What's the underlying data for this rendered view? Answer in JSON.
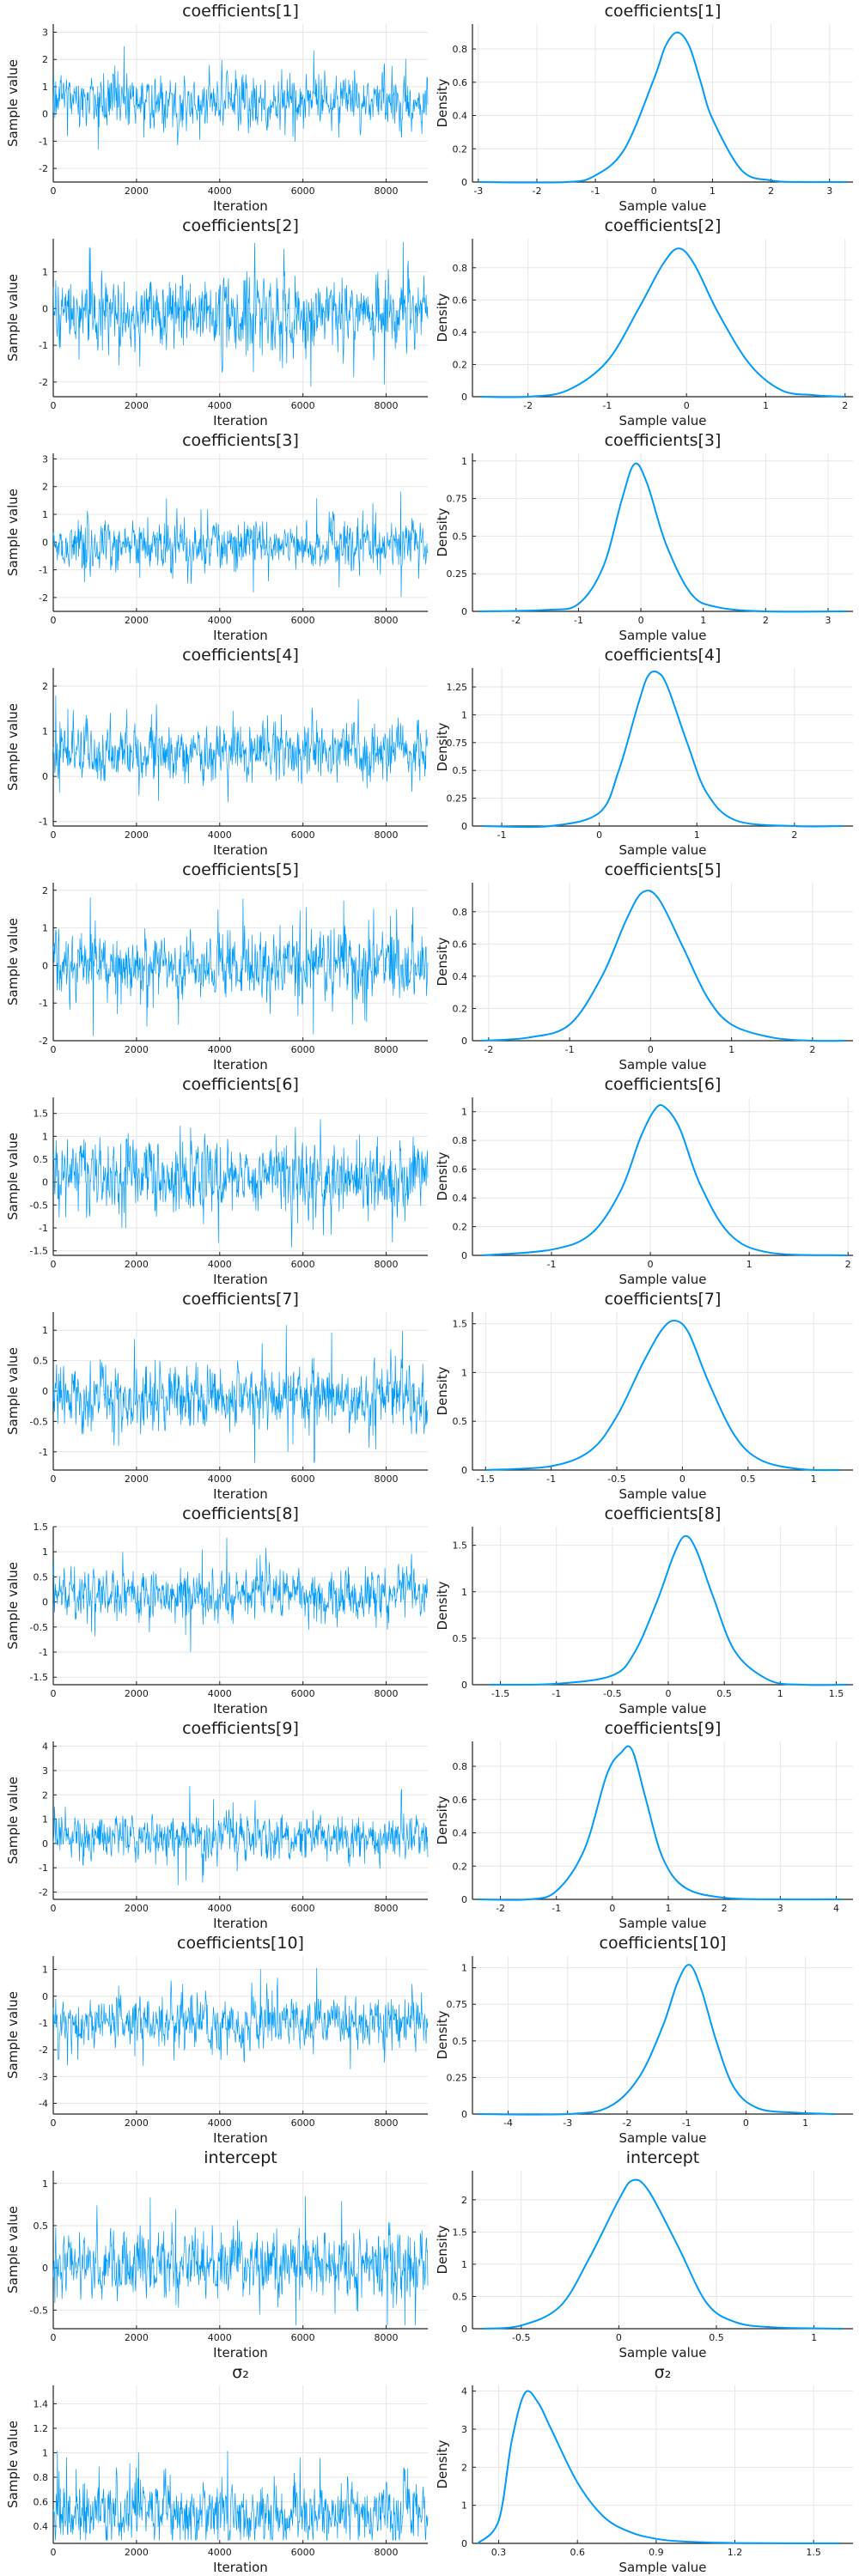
{
  "figure": {
    "series_color": "#009af9",
    "trace_xlabel": "Iteration",
    "trace_ylabel": "Sample value",
    "density_xlabel": "Sample value",
    "density_ylabel": "Density"
  },
  "chart_data": [
    {
      "title": "coefficients[1]",
      "trace": {
        "type": "line",
        "xlabel": "Iteration",
        "ylabel": "Sample value",
        "xlim": [
          0,
          9000
        ],
        "ylim": [
          -2.5,
          3.3
        ],
        "xticks": [
          0,
          2000,
          4000,
          6000,
          8000
        ],
        "yticks": [
          -2,
          -1,
          0,
          1,
          2,
          3
        ],
        "mean": 0.45,
        "sd": 0.45
      },
      "density": {
        "type": "line",
        "xlabel": "Sample value",
        "ylabel": "Density",
        "xlim": [
          -3.1,
          3.4
        ],
        "ylim": [
          0,
          0.95
        ],
        "xticks": [
          -3,
          -2,
          -1,
          0,
          1,
          2,
          3
        ],
        "yticks": [
          0,
          0.2,
          0.4,
          0.6,
          0.8
        ],
        "x": [
          -3.0,
          -1.5,
          -1.0,
          -0.5,
          0.0,
          0.2,
          0.4,
          0.6,
          0.8,
          1.0,
          1.5,
          2.0,
          2.5,
          3.3
        ],
        "y": [
          0.0,
          0.0,
          0.04,
          0.2,
          0.62,
          0.82,
          0.9,
          0.82,
          0.6,
          0.38,
          0.07,
          0.01,
          0.0,
          0.0
        ]
      }
    },
    {
      "title": "coefficients[2]",
      "trace": {
        "type": "line",
        "xlabel": "Iteration",
        "ylabel": "Sample value",
        "xlim": [
          0,
          9000
        ],
        "ylim": [
          -2.4,
          1.9
        ],
        "xticks": [
          0,
          2000,
          4000,
          6000,
          8000
        ],
        "yticks": [
          -2,
          -1,
          0,
          1
        ],
        "mean": -0.1,
        "sd": 0.45
      },
      "density": {
        "type": "line",
        "xlabel": "Sample value",
        "ylabel": "Density",
        "xlim": [
          -2.7,
          2.1
        ],
        "ylim": [
          0,
          0.98
        ],
        "xticks": [
          -2,
          -1,
          0,
          1,
          2
        ],
        "yticks": [
          0,
          0.2,
          0.4,
          0.6,
          0.8
        ],
        "x": [
          -2.6,
          -2.0,
          -1.5,
          -1.0,
          -0.6,
          -0.3,
          -0.1,
          0.1,
          0.4,
          0.8,
          1.2,
          1.6,
          2.0
        ],
        "y": [
          0.0,
          0.0,
          0.04,
          0.22,
          0.55,
          0.82,
          0.92,
          0.82,
          0.52,
          0.2,
          0.04,
          0.01,
          0.0
        ]
      }
    },
    {
      "title": "coefficients[3]",
      "trace": {
        "type": "line",
        "xlabel": "Iteration",
        "ylabel": "Sample value",
        "xlim": [
          0,
          9000
        ],
        "ylim": [
          -2.5,
          3.2
        ],
        "xticks": [
          0,
          2000,
          4000,
          6000,
          8000
        ],
        "yticks": [
          -2,
          -1,
          0,
          1,
          2,
          3
        ],
        "mean": -0.1,
        "sd": 0.42
      },
      "density": {
        "type": "line",
        "xlabel": "Sample value",
        "ylabel": "Density",
        "xlim": [
          -2.7,
          3.4
        ],
        "ylim": [
          0,
          1.05
        ],
        "xticks": [
          -2,
          -1,
          0,
          1,
          2,
          3
        ],
        "yticks": [
          0,
          0.25,
          0.5,
          0.75,
          1.0
        ],
        "x": [
          -2.6,
          -1.5,
          -1.0,
          -0.6,
          -0.3,
          -0.1,
          0.1,
          0.4,
          0.8,
          1.2,
          2.0,
          3.3
        ],
        "y": [
          0.0,
          0.01,
          0.05,
          0.3,
          0.75,
          0.98,
          0.85,
          0.45,
          0.12,
          0.03,
          0.0,
          0.0
        ]
      }
    },
    {
      "title": "coefficients[4]",
      "trace": {
        "type": "line",
        "xlabel": "Iteration",
        "ylabel": "Sample value",
        "xlim": [
          0,
          9000
        ],
        "ylim": [
          -1.1,
          2.4
        ],
        "xticks": [
          0,
          2000,
          4000,
          6000,
          8000
        ],
        "yticks": [
          -1,
          0,
          1,
          2
        ],
        "mean": 0.55,
        "sd": 0.3
      },
      "density": {
        "type": "line",
        "xlabel": "Sample value",
        "ylabel": "Density",
        "xlim": [
          -1.3,
          2.6
        ],
        "ylim": [
          0,
          1.42
        ],
        "xticks": [
          -1,
          0,
          1,
          2
        ],
        "yticks": [
          0,
          0.25,
          0.5,
          0.75,
          1.0,
          1.25
        ],
        "x": [
          -1.2,
          -0.5,
          0.0,
          0.2,
          0.4,
          0.5,
          0.6,
          0.7,
          0.9,
          1.1,
          1.4,
          2.0,
          2.5
        ],
        "y": [
          0.0,
          0.0,
          0.12,
          0.5,
          1.1,
          1.35,
          1.38,
          1.25,
          0.75,
          0.3,
          0.05,
          0.0,
          0.0
        ]
      }
    },
    {
      "title": "coefficients[5]",
      "trace": {
        "type": "line",
        "xlabel": "Iteration",
        "ylabel": "Sample value",
        "xlim": [
          0,
          9000
        ],
        "ylim": [
          -2.0,
          2.2
        ],
        "xticks": [
          0,
          2000,
          4000,
          6000,
          8000
        ],
        "yticks": [
          -2,
          -1,
          0,
          1,
          2
        ],
        "mean": 0.0,
        "sd": 0.45
      },
      "density": {
        "type": "line",
        "xlabel": "Sample value",
        "ylabel": "Density",
        "xlim": [
          -2.2,
          2.5
        ],
        "ylim": [
          0,
          0.98
        ],
        "xticks": [
          -2,
          -1,
          0,
          1,
          2
        ],
        "yticks": [
          0,
          0.2,
          0.4,
          0.6,
          0.8
        ],
        "x": [
          -2.1,
          -1.5,
          -1.0,
          -0.6,
          -0.3,
          -0.1,
          0.1,
          0.4,
          0.7,
          1.0,
          1.5,
          2.0,
          2.4
        ],
        "y": [
          0.0,
          0.02,
          0.1,
          0.4,
          0.75,
          0.92,
          0.88,
          0.58,
          0.27,
          0.1,
          0.02,
          0.0,
          0.0
        ]
      }
    },
    {
      "title": "coefficients[6]",
      "trace": {
        "type": "line",
        "xlabel": "Iteration",
        "ylabel": "Sample value",
        "xlim": [
          0,
          9000
        ],
        "ylim": [
          -1.6,
          1.85
        ],
        "xticks": [
          0,
          2000,
          4000,
          6000,
          8000
        ],
        "yticks": [
          -1.5,
          -1.0,
          -0.5,
          0.0,
          0.5,
          1.0,
          1.5
        ],
        "mean": 0.1,
        "sd": 0.38
      },
      "density": {
        "type": "line",
        "xlabel": "Sample value",
        "ylabel": "Density",
        "xlim": [
          -1.8,
          2.05
        ],
        "ylim": [
          0,
          1.1
        ],
        "xticks": [
          -1,
          0,
          1,
          2
        ],
        "yticks": [
          0,
          0.2,
          0.4,
          0.6,
          0.8,
          1.0
        ],
        "x": [
          -1.7,
          -1.0,
          -0.6,
          -0.3,
          -0.1,
          0.05,
          0.15,
          0.3,
          0.5,
          0.8,
          1.2,
          2.0
        ],
        "y": [
          0.0,
          0.04,
          0.15,
          0.45,
          0.82,
          1.02,
          1.03,
          0.88,
          0.5,
          0.15,
          0.02,
          0.0
        ]
      }
    },
    {
      "title": "coefficients[7]",
      "trace": {
        "type": "line",
        "xlabel": "Iteration",
        "ylabel": "Sample value",
        "xlim": [
          0,
          9000
        ],
        "ylim": [
          -1.3,
          1.3
        ],
        "xticks": [
          0,
          2000,
          4000,
          6000,
          8000
        ],
        "yticks": [
          -1.0,
          -0.5,
          0.0,
          0.5,
          1.0
        ],
        "mean": -0.08,
        "sd": 0.26
      },
      "density": {
        "type": "line",
        "xlabel": "Sample value",
        "ylabel": "Density",
        "xlim": [
          -1.6,
          1.3
        ],
        "ylim": [
          0,
          1.62
        ],
        "xticks": [
          -1.5,
          -1.0,
          -0.5,
          0.0,
          0.5,
          1.0
        ],
        "yticks": [
          0,
          0.5,
          1.0,
          1.5
        ],
        "x": [
          -1.5,
          -1.0,
          -0.7,
          -0.5,
          -0.3,
          -0.15,
          -0.05,
          0.05,
          0.2,
          0.4,
          0.6,
          0.9,
          1.2
        ],
        "y": [
          0.0,
          0.04,
          0.2,
          0.55,
          1.1,
          1.45,
          1.53,
          1.4,
          0.9,
          0.35,
          0.1,
          0.01,
          0.0
        ]
      }
    },
    {
      "title": "coefficients[8]",
      "trace": {
        "type": "line",
        "xlabel": "Iteration",
        "ylabel": "Sample value",
        "xlim": [
          0,
          9000
        ],
        "ylim": [
          -1.65,
          1.5
        ],
        "xticks": [
          0,
          2000,
          4000,
          6000,
          8000
        ],
        "yticks": [
          -1.5,
          -1.0,
          -0.5,
          0.0,
          0.5,
          1.0,
          1.5
        ],
        "mean": 0.15,
        "sd": 0.25
      },
      "density": {
        "type": "line",
        "xlabel": "Sample value",
        "ylabel": "Density",
        "xlim": [
          -1.75,
          1.65
        ],
        "ylim": [
          0,
          1.7
        ],
        "xticks": [
          -1.5,
          -1.0,
          -0.5,
          0.0,
          0.5,
          1.0,
          1.5
        ],
        "yticks": [
          0,
          0.5,
          1.0,
          1.5
        ],
        "x": [
          -1.6,
          -1.0,
          -0.5,
          -0.3,
          -0.1,
          0.05,
          0.15,
          0.25,
          0.4,
          0.6,
          0.9,
          1.2,
          1.6
        ],
        "y": [
          0.0,
          0.01,
          0.1,
          0.35,
          0.9,
          1.4,
          1.6,
          1.45,
          0.95,
          0.35,
          0.05,
          0.0,
          0.0
        ]
      }
    },
    {
      "title": "coefficients[9]",
      "trace": {
        "type": "line",
        "xlabel": "Iteration",
        "ylabel": "Sample value",
        "xlim": [
          0,
          9000
        ],
        "ylim": [
          -2.3,
          4.2
        ],
        "xticks": [
          0,
          2000,
          4000,
          6000,
          8000
        ],
        "yticks": [
          -2,
          -1,
          0,
          1,
          2,
          3,
          4
        ],
        "mean": 0.3,
        "sd": 0.45
      },
      "density": {
        "type": "line",
        "xlabel": "Sample value",
        "ylabel": "Density",
        "xlim": [
          -2.5,
          4.3
        ],
        "ylim": [
          0,
          0.95
        ],
        "xticks": [
          -2,
          -1,
          0,
          1,
          2,
          3,
          4
        ],
        "yticks": [
          0,
          0.2,
          0.4,
          0.6,
          0.8
        ],
        "x": [
          -2.4,
          -1.5,
          -1.0,
          -0.5,
          -0.1,
          0.15,
          0.35,
          0.6,
          0.9,
          1.3,
          2.0,
          3.0,
          4.1
        ],
        "y": [
          0.0,
          0.0,
          0.05,
          0.3,
          0.75,
          0.88,
          0.9,
          0.6,
          0.25,
          0.07,
          0.01,
          0.0,
          0.0
        ]
      }
    },
    {
      "title": "coefficients[10]",
      "trace": {
        "type": "line",
        "xlabel": "Iteration",
        "ylabel": "Sample value",
        "xlim": [
          0,
          9000
        ],
        "ylim": [
          -4.4,
          1.5
        ],
        "xticks": [
          0,
          2000,
          4000,
          6000,
          8000
        ],
        "yticks": [
          -4,
          -3,
          -2,
          -1,
          0,
          1
        ],
        "mean": -0.95,
        "sd": 0.45
      },
      "density": {
        "type": "line",
        "xlabel": "Sample value",
        "ylabel": "Density",
        "xlim": [
          -4.6,
          1.8
        ],
        "ylim": [
          0,
          1.08
        ],
        "xticks": [
          -4,
          -3,
          -2,
          -1,
          0,
          1
        ],
        "yticks": [
          0,
          0.25,
          0.5,
          0.75,
          1.0
        ],
        "x": [
          -4.5,
          -3.0,
          -2.3,
          -1.8,
          -1.4,
          -1.15,
          -0.95,
          -0.75,
          -0.5,
          -0.2,
          0.2,
          0.8,
          1.5
        ],
        "y": [
          0.0,
          0.0,
          0.05,
          0.25,
          0.6,
          0.9,
          1.02,
          0.85,
          0.5,
          0.18,
          0.04,
          0.01,
          0.0
        ]
      }
    },
    {
      "title": "intercept",
      "trace": {
        "type": "line",
        "xlabel": "Iteration",
        "ylabel": "Sample value",
        "xlim": [
          0,
          9000
        ],
        "ylim": [
          -0.72,
          1.15
        ],
        "xticks": [
          0,
          2000,
          4000,
          6000,
          8000
        ],
        "yticks": [
          -0.5,
          0.0,
          0.5,
          1.0
        ],
        "mean": 0.05,
        "sd": 0.18
      },
      "density": {
        "type": "line",
        "xlabel": "Sample value",
        "ylabel": "Density",
        "xlim": [
          -0.75,
          1.2
        ],
        "ylim": [
          0,
          2.45
        ],
        "xticks": [
          -0.5,
          0.0,
          0.5,
          1.0
        ],
        "yticks": [
          0,
          0.5,
          1.0,
          1.5,
          2.0
        ],
        "x": [
          -0.7,
          -0.5,
          -0.3,
          -0.15,
          0.0,
          0.07,
          0.15,
          0.3,
          0.45,
          0.6,
          0.8,
          1.15
        ],
        "y": [
          0.0,
          0.05,
          0.35,
          1.1,
          2.0,
          2.3,
          2.15,
          1.3,
          0.4,
          0.1,
          0.02,
          0.0
        ]
      }
    },
    {
      "title": "σ₂",
      "trace": {
        "type": "line",
        "xlabel": "Iteration",
        "ylabel": "Sample value",
        "xlim": [
          0,
          9000
        ],
        "ylim": [
          0.26,
          1.55
        ],
        "xticks": [
          0,
          2000,
          4000,
          6000,
          8000
        ],
        "yticks": [
          0.4,
          0.6,
          0.8,
          1.0,
          1.2,
          1.4
        ],
        "mean": 0.5,
        "sd": 0.12
      },
      "density": {
        "type": "line",
        "xlabel": "Sample value",
        "ylabel": "Density",
        "xlim": [
          0.2,
          1.65
        ],
        "ylim": [
          0,
          4.15
        ],
        "xticks": [
          0.3,
          0.6,
          0.9,
          1.2,
          1.5
        ],
        "yticks": [
          0,
          1,
          2,
          3,
          4
        ],
        "x": [
          0.22,
          0.3,
          0.35,
          0.4,
          0.45,
          0.5,
          0.6,
          0.7,
          0.8,
          0.9,
          1.0,
          1.2,
          1.6
        ],
        "y": [
          0.0,
          0.6,
          2.7,
          3.95,
          3.7,
          3.0,
          1.6,
          0.7,
          0.3,
          0.12,
          0.05,
          0.01,
          0.0
        ]
      }
    }
  ]
}
